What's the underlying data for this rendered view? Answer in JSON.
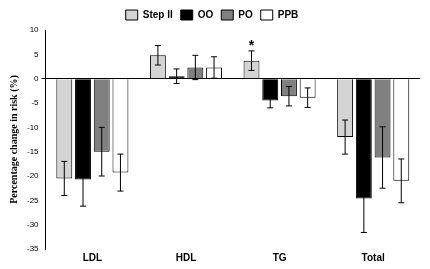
{
  "chart_data": {
    "type": "bar",
    "y_label": "Percentage change in risk (%)",
    "categories": [
      "LDL",
      "HDL",
      "TG",
      "Total"
    ],
    "series": [
      {
        "name": "Step II",
        "color": "#d4d4d4",
        "values": [
          -20.5,
          4.8,
          3.7,
          -12.0
        ],
        "errors": [
          3.5,
          2.0,
          2.0,
          3.5
        ]
      },
      {
        "name": "OO",
        "color": "#000000",
        "values": [
          -20.7,
          0.5,
          -4.5,
          -24.6
        ],
        "errors": [
          5.5,
          1.5,
          1.5,
          7.0
        ]
      },
      {
        "name": "PO",
        "color": "#808080",
        "values": [
          -15.0,
          2.3,
          -3.6,
          -16.2
        ],
        "errors": [
          5.0,
          2.5,
          2.0,
          6.3
        ]
      },
      {
        "name": "PPB",
        "color": "#ffffff",
        "values": [
          -19.3,
          2.3,
          -3.9,
          -21.0
        ],
        "errors": [
          3.8,
          2.2,
          2.0,
          4.5
        ]
      }
    ],
    "annotations": [
      {
        "text": "*",
        "category": "TG",
        "series": "Step II"
      }
    ],
    "ylim": [
      -35,
      10
    ],
    "yticks": [
      -35,
      -30,
      -25,
      -20,
      -15,
      -10,
      -5,
      0,
      5,
      10
    ],
    "grid": false,
    "legend": "top"
  }
}
